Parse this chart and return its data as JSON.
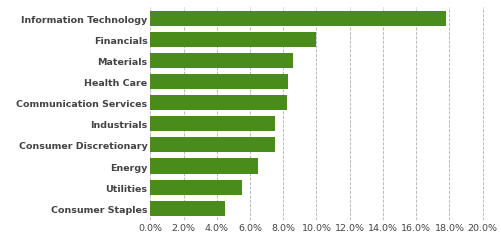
{
  "categories": [
    "Consumer Staples",
    "Utilities",
    "Energy",
    "Consumer Discretionary",
    "Industrials",
    "Communication Services",
    "Health Care",
    "Materials",
    "Financials",
    "Information Technology"
  ],
  "values": [
    0.045,
    0.055,
    0.065,
    0.075,
    0.075,
    0.082,
    0.083,
    0.086,
    0.1,
    0.178
  ],
  "bar_color": "#4a8c1c",
  "background_color": "#ffffff",
  "xlim": [
    0.0,
    0.205
  ],
  "xtick_values": [
    0.0,
    0.02,
    0.04,
    0.06,
    0.08,
    0.1,
    0.12,
    0.14,
    0.16,
    0.18,
    0.2
  ],
  "grid_color": "#b0b0b0",
  "label_fontsize": 6.8,
  "tick_fontsize": 6.8,
  "bar_height": 0.72
}
